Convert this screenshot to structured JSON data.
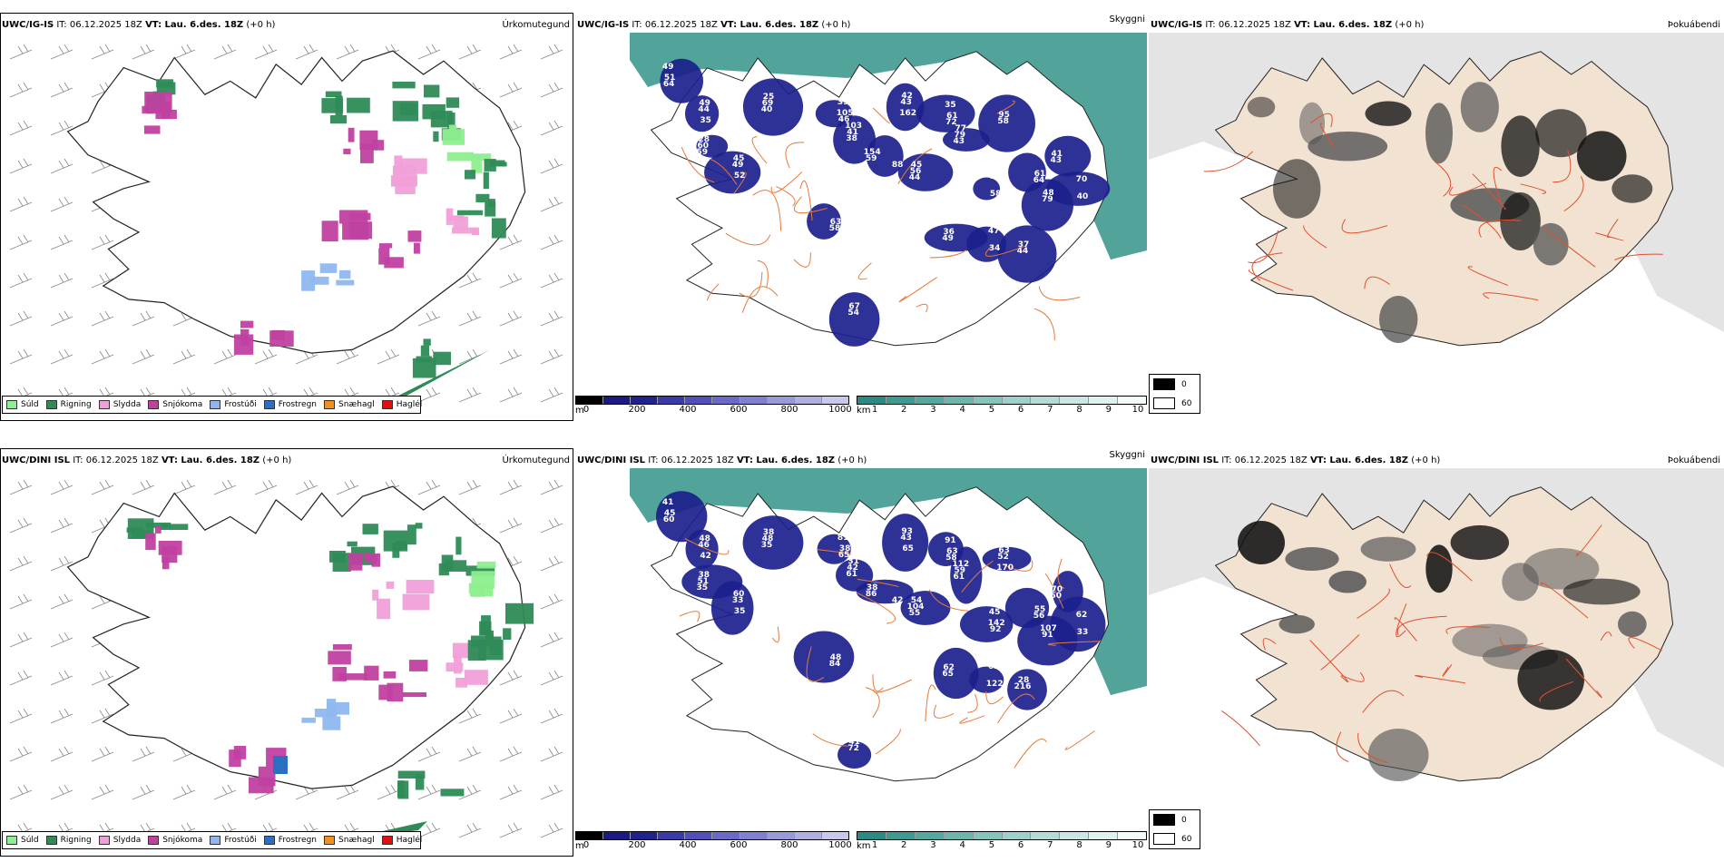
{
  "colors": {
    "sea_teal": "#3f9a8f",
    "snow_blue": "#1c1f8c",
    "land_beige": "#f2e2d2",
    "road_orange": "#e67a3a",
    "drizzle": "#8fef8f",
    "rain": "#2e8b57",
    "sleet": "#f0a0d8",
    "snow": "#c040a0",
    "freezing_drizzle": "#8fb8f0",
    "freezing_rain": "#2b6fc0",
    "graupel": "#f09020",
    "hail": "#e01010"
  },
  "rows": [
    {
      "model": "UWC/IG-IS",
      "it_label": "IT:",
      "it_value": "06.12.2025 18Z",
      "vt_label": "VT: Lau. 6.des. 18Z",
      "lead": "(+0 h)",
      "precip_title": "Úrkomutegund",
      "vis_title": "Skyggni",
      "fog_title": "Þokuábendi",
      "snow_labels": [
        "49",
        "44",
        "59",
        "49",
        "40",
        "39",
        "38",
        "88",
        "43",
        "44",
        "35",
        "43",
        "68",
        "58",
        "64",
        "79",
        "43",
        "70",
        "49",
        "47",
        "44",
        "58",
        "54",
        "64",
        "49",
        "60",
        "45",
        "69",
        "46",
        "41",
        "59",
        "42",
        "56",
        "72",
        "79",
        "58",
        "95",
        "61",
        "48",
        "41",
        "40",
        "36",
        "34",
        "37",
        "63",
        "67",
        "51",
        "35",
        "28",
        "52",
        "25",
        "105",
        "103",
        "154",
        "162",
        "45",
        "61",
        "77"
      ]
    },
    {
      "model": "UWC/DINI ISL",
      "it_label": "IT:",
      "it_value": "06.12.2025 18Z",
      "vt_label": "VT: Lau. 6.des. 18Z",
      "lead": "(+0 h)",
      "precip_title": "Úrkomutegund",
      "vis_title": "Skyggni",
      "fog_title": "Þokuábendi",
      "snow_labels": [
        "41",
        "46",
        "35",
        "33",
        "35",
        "81",
        "61",
        "42",
        "43",
        "55",
        "91",
        "61",
        "45",
        "52",
        "56",
        "91",
        "50",
        "62",
        "65",
        "62",
        "216",
        "84",
        "72",
        "60",
        "48",
        "51",
        "60",
        "48",
        "65",
        "42",
        "86",
        "93",
        "104",
        "58",
        "59",
        "92",
        "63",
        "55",
        "107",
        "70",
        "33",
        "62",
        "122",
        "28",
        "48",
        "41",
        "45",
        "42",
        "38",
        "35",
        "38",
        "38",
        "31",
        "38",
        "65",
        "54",
        "63",
        "112",
        "142",
        "170"
      ]
    }
  ],
  "precip_legend": [
    "Súld",
    "Rigning",
    "Slydda",
    "Snjókoma",
    "Frostúði",
    "Frostregn",
    "Snæhagl",
    "Haglél"
  ],
  "elevation_bar": {
    "unit": "m",
    "ticks": [
      "0",
      "200",
      "400",
      "600",
      "800",
      "1000"
    ]
  },
  "visibility_bar": {
    "unit": "km",
    "ticks": [
      "1",
      "2",
      "3",
      "4",
      "5",
      "6",
      "7",
      "8",
      "9",
      "10"
    ]
  },
  "fog_legend": [
    "0",
    "60"
  ]
}
